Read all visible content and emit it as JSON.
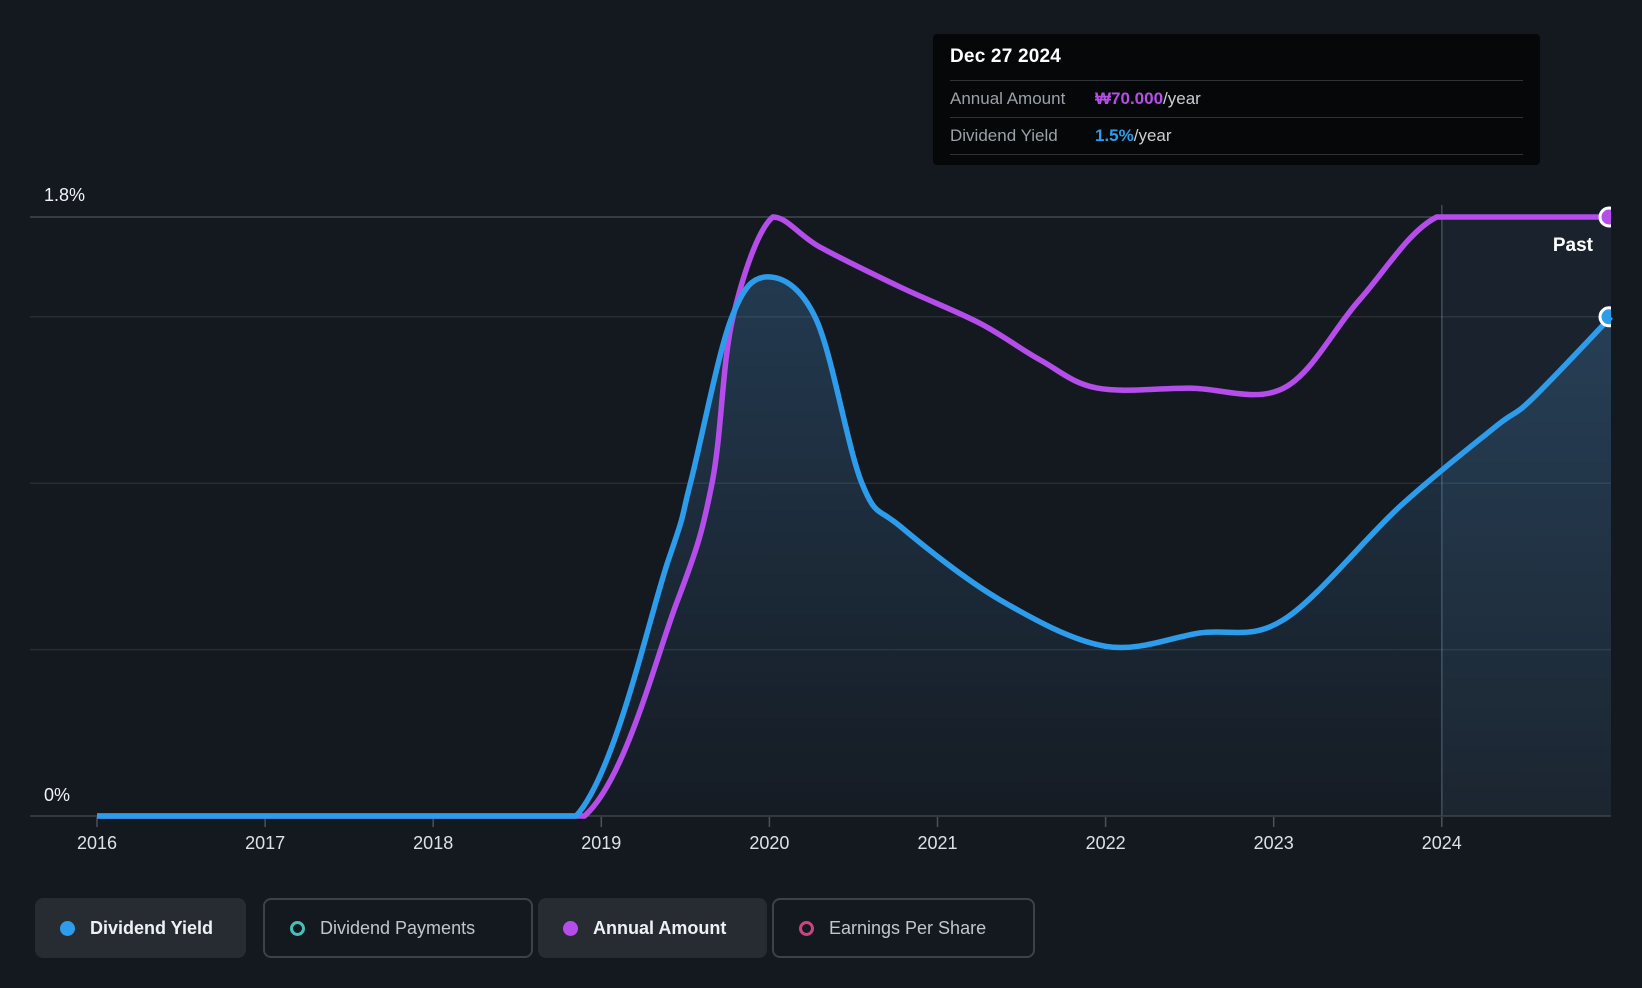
{
  "tooltip": {
    "date": "Dec 27 2024",
    "rows": [
      {
        "label": "Annual Amount",
        "value": "₩70.000",
        "suffix": "/year",
        "color": "#b44fe9"
      },
      {
        "label": "Dividend Yield",
        "value": "1.5%",
        "suffix": "/year",
        "color": "#2d9ceb"
      }
    ]
  },
  "past_label": "Past",
  "legend": [
    {
      "label": "Dividend Yield",
      "color": "#2d9ceb",
      "filled": true,
      "active": true
    },
    {
      "label": "Dividend Payments",
      "color": "#41c1b8",
      "filled": false,
      "active": false
    },
    {
      "label": "Annual Amount",
      "color": "#b44de9",
      "filled": true,
      "active": true
    },
    {
      "label": "Earnings Per Share",
      "color": "#c74680",
      "filled": false,
      "active": false
    }
  ],
  "colors": {
    "background": "#141920",
    "yield_line": "#2d9ceb",
    "amount_line": "#b44de9",
    "grid_top": "#414951",
    "grid": "#272d35",
    "axis": "#3c434b",
    "tick": "#49515a",
    "x_label": "#dce1e6",
    "y_label": "#f0f3f5"
  },
  "chart_data": {
    "type": "area",
    "x_ticks": [
      "2016",
      "2017",
      "2018",
      "2019",
      "2020",
      "2021",
      "2022",
      "2023",
      "2024"
    ],
    "x_range": [
      2016,
      2025.02
    ],
    "y_axis": {
      "unit": "%",
      "min": 0,
      "max": 1.8,
      "gridlines": [
        1.8,
        1.5,
        1.0,
        0.5
      ],
      "max_label": "1.8%",
      "min_label": "0%"
    },
    "past_divider_year": 2024,
    "legend_position": "bottom",
    "series": [
      {
        "name": "Annual Amount",
        "unit": "KRW/year",
        "color": "#b44de9",
        "style": "line",
        "scale": {
          "max_value": 70000,
          "aligns_with_pct": 1.8
        },
        "points": [
          [
            2016,
            0
          ],
          [
            2017,
            0
          ],
          [
            2018,
            0
          ],
          [
            2018.9,
            0
          ],
          [
            2019.45,
            25000
          ],
          [
            2019.66,
            39000
          ],
          [
            2019.78,
            58000
          ],
          [
            2020.02,
            70000
          ],
          [
            2020.3,
            66500
          ],
          [
            2020.78,
            61800
          ],
          [
            2021.25,
            57600
          ],
          [
            2021.61,
            53300
          ],
          [
            2021.95,
            50000
          ],
          [
            2022.5,
            50000
          ],
          [
            2023.06,
            50000
          ],
          [
            2023.51,
            60300
          ],
          [
            2023.97,
            70000
          ],
          [
            2024.5,
            70000
          ],
          [
            2025.02,
            70000
          ]
        ]
      },
      {
        "name": "Dividend Yield",
        "unit": "%",
        "color": "#2d9ceb",
        "style": "line+area",
        "points": [
          [
            2016,
            0
          ],
          [
            2017,
            0
          ],
          [
            2018,
            0
          ],
          [
            2018.85,
            0
          ],
          [
            2019.4,
            0.77
          ],
          [
            2019.53,
            1.0
          ],
          [
            2019.77,
            1.49
          ],
          [
            2019.99,
            1.62
          ],
          [
            2020.28,
            1.49
          ],
          [
            2020.55,
            1.0
          ],
          [
            2020.78,
            0.87
          ],
          [
            2021.37,
            0.65
          ],
          [
            2022.0,
            0.51
          ],
          [
            2022.56,
            0.55
          ],
          [
            2023.06,
            0.59
          ],
          [
            2023.75,
            0.93
          ],
          [
            2024.32,
            1.17
          ],
          [
            2024.53,
            1.25
          ],
          [
            2025.02,
            1.5
          ]
        ]
      }
    ]
  }
}
